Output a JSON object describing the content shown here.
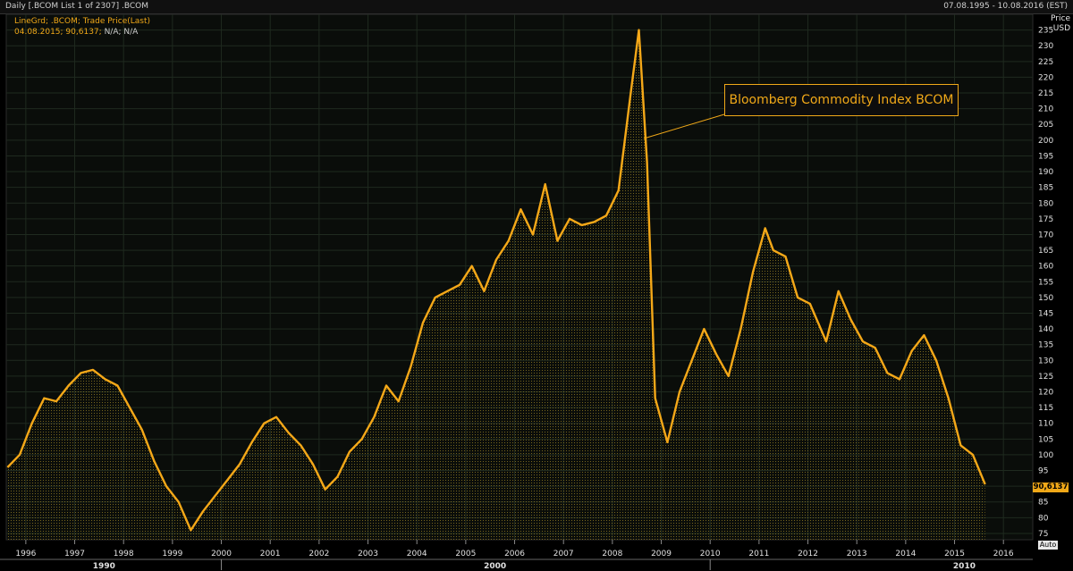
{
  "header": {
    "title_left": "Daily [.BCOM List 1 of 2307] .BCOM",
    "title_right": "07.08.1995 - 10.08.2016 (EST)"
  },
  "legend": {
    "line1": "LineGrd; .BCOM; Trade Price(Last)",
    "line2_value": "04.08.2015; 90,6137;",
    "line2_rest": "N/A; N/A"
  },
  "annotation": "Bloomberg Commodity Index BCOM",
  "price_axis": {
    "title": "Price",
    "unit": "USD"
  },
  "last_value_tag": "90,6137",
  "auto_button": "Auto",
  "colors": {
    "line": "#f5a818",
    "grid": "#2a3a2a",
    "fill": "#6b5a1a"
  },
  "chart_data": {
    "type": "area",
    "title": "",
    "xlabel": "",
    "ylabel": "Price USD",
    "xlim": [
      1995.6,
      2016.6
    ],
    "ylim": [
      73,
      240
    ],
    "y_ticks": [
      75,
      80,
      85,
      90,
      95,
      100,
      105,
      110,
      115,
      120,
      125,
      130,
      135,
      140,
      145,
      150,
      155,
      160,
      165,
      170,
      175,
      180,
      185,
      190,
      195,
      200,
      205,
      210,
      215,
      220,
      225,
      230,
      235
    ],
    "x_ticks": [
      "1996",
      "1997",
      "1998",
      "1999",
      "2000",
      "2001",
      "2002",
      "2003",
      "2004",
      "2005",
      "2006",
      "2007",
      "2008",
      "2009",
      "2010",
      "2011",
      "2012",
      "2013",
      "2014",
      "2015",
      "2016"
    ],
    "x_major_labels": [
      "1990",
      "2000",
      "2010"
    ],
    "series": [
      {
        "x": [
          "1995-08",
          "1995-11",
          "1996-02",
          "1996-05",
          "1996-08",
          "1996-11",
          "1997-02",
          "1997-05",
          "1997-08",
          "1997-11",
          "1998-02",
          "1998-05",
          "1998-08",
          "1998-11",
          "1999-02",
          "1999-05",
          "1999-08",
          "1999-11",
          "2000-02",
          "2000-05",
          "2000-08",
          "2000-11",
          "2001-02",
          "2001-05",
          "2001-08",
          "2001-11",
          "2002-02",
          "2002-05",
          "2002-08",
          "2002-11",
          "2003-02",
          "2003-05",
          "2003-08",
          "2003-11",
          "2004-02",
          "2004-05",
          "2004-08",
          "2004-11",
          "2005-02",
          "2005-05",
          "2005-08",
          "2005-11",
          "2006-02",
          "2006-05",
          "2006-08",
          "2006-11",
          "2007-02",
          "2007-05",
          "2007-08",
          "2007-11",
          "2008-02",
          "2008-05",
          "2008-07",
          "2008-09",
          "2008-11",
          "2009-02",
          "2009-05",
          "2009-08",
          "2009-11",
          "2010-02",
          "2010-05",
          "2010-08",
          "2010-11",
          "2011-02",
          "2011-04",
          "2011-07",
          "2011-10",
          "2012-01",
          "2012-05",
          "2012-08",
          "2012-11",
          "2013-02",
          "2013-05",
          "2013-08",
          "2013-11",
          "2014-02",
          "2014-05",
          "2014-08",
          "2014-11",
          "2015-02",
          "2015-05",
          "2015-08"
        ],
        "values": [
          96,
          100,
          110,
          118,
          117,
          122,
          126,
          127,
          124,
          122,
          115,
          108,
          98,
          90,
          85,
          76,
          82,
          87,
          92,
          97,
          104,
          110,
          112,
          107,
          103,
          97,
          89,
          93,
          101,
          105,
          112,
          122,
          117,
          128,
          142,
          150,
          152,
          154,
          160,
          152,
          162,
          168,
          178,
          170,
          186,
          168,
          175,
          173,
          174,
          176,
          184,
          215,
          235,
          193,
          118,
          104,
          120,
          130,
          140,
          132,
          125,
          140,
          158,
          172,
          165,
          163,
          150,
          148,
          136,
          152,
          143,
          136,
          134,
          126,
          124,
          133,
          138,
          130,
          118,
          103,
          100,
          90.6137
        ]
      }
    ]
  }
}
